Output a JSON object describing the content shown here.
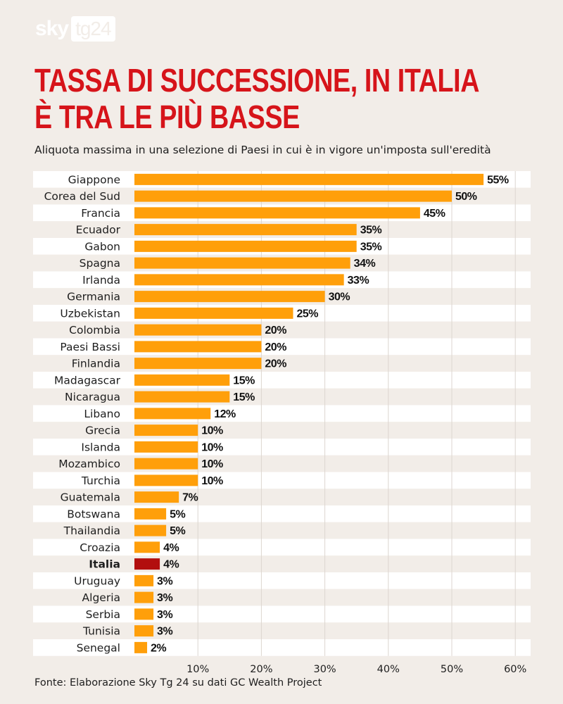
{
  "brand": {
    "part1": "sky",
    "part2": "tg24"
  },
  "title_lines": [
    "TASSA DI SUCCESSIONE, IN ITALIA",
    "È TRA LE PIÙ BASSE"
  ],
  "subtitle": "Aliquota massima in una selezione di Paesi in cui è in vigore un'imposta sull'eredità",
  "source": "Fonte: Elaborazione Sky Tg 24 su dati GC Wealth Project",
  "colors": {
    "bar": "#ff9f0a",
    "highlight": "#b20e0e",
    "title": "#d6141a"
  },
  "chart_data": {
    "type": "bar",
    "orientation": "horizontal",
    "categories": [
      "Giappone",
      "Corea del Sud",
      "Francia",
      "Ecuador",
      "Gabon",
      "Spagna",
      "Irlanda",
      "Germania",
      "Uzbekistan",
      "Colombia",
      "Paesi Bassi",
      "Finlandia",
      "Madagascar",
      "Nicaragua",
      "Libano",
      "Grecia",
      "Islanda",
      "Mozambico",
      "Turchia",
      "Guatemala",
      "Botswana",
      "Thailandia",
      "Croazia",
      "Italia",
      "Uruguay",
      "Algeria",
      "Serbia",
      "Tunisia",
      "Senegal"
    ],
    "values": [
      55,
      50,
      45,
      35,
      35,
      34,
      33,
      30,
      25,
      20,
      20,
      20,
      15,
      15,
      12,
      10,
      10,
      10,
      10,
      7,
      5,
      5,
      4,
      4,
      3,
      3,
      3,
      3,
      2
    ],
    "value_labels": [
      "55%",
      "50%",
      "45%",
      "35%",
      "35%",
      "34%",
      "33%",
      "30%",
      "25%",
      "20%",
      "20%",
      "20%",
      "15%",
      "15%",
      "12%",
      "10%",
      "10%",
      "10%",
      "10%",
      "7%",
      "5%",
      "5%",
      "4%",
      "4%",
      "3%",
      "3%",
      "3%",
      "3%",
      "2%"
    ],
    "highlight": "Italia",
    "xlim": [
      0,
      62
    ],
    "xticks": [
      10,
      20,
      30,
      40,
      50,
      60
    ],
    "xtick_labels": [
      "10%",
      "20%",
      "30%",
      "40%",
      "50%",
      "60%"
    ],
    "grid": true,
    "xlabel": "",
    "ylabel": ""
  }
}
